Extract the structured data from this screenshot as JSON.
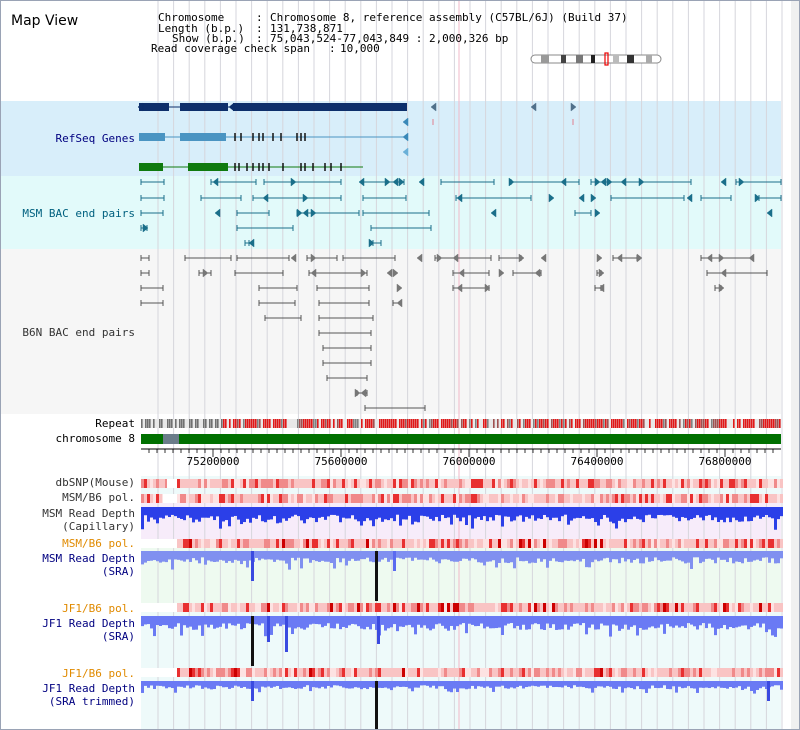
{
  "app": {
    "title": "Map View"
  },
  "info": {
    "chromosome_label": "Chromosome",
    "chromosome_value": "Chromosome 8, reference assembly (C57BL/6J) (Build 37)",
    "length_label": "Length (b.p.)",
    "length_value": "131,738,871",
    "show_label": "Show (b.p.)",
    "show_value": "75,043,524-77,043,849 : 2,000,326 bp",
    "coverage_label": "Read coverage check span",
    "coverage_value": "10,000"
  },
  "tracks": {
    "refseq": "RefSeq Genes",
    "msm_bac": "MSM BAC end pairs",
    "b6n_bac": "B6N BAC end pairs",
    "repeat": "Repeat",
    "chromosome": "chromosome 8",
    "dbsnp": "dbSNP(Mouse)",
    "msm_pol": "MSM/B6 pol.",
    "msm_depth_cap_1": "MSM Read Depth",
    "msm_depth_cap_2": "(Capillary)",
    "msm_pol2": "MSM/B6 pol.",
    "msm_depth_sra_1": "MSM Read Depth",
    "msm_depth_sra_2": "(SRA)",
    "jf1_pol": "JF1/B6 pol.",
    "jf1_depth_sra_1": "JF1 Read Depth",
    "jf1_depth_sra_2": "(SRA)",
    "jf1_pol2": "JF1/B6 pol.",
    "jf1_depth_trim_1": "JF1 Read Depth",
    "jf1_depth_trim_2": "(SRA trimmed)"
  },
  "ruler": {
    "ticks": [
      "75200000",
      "75600000",
      "76000000",
      "76400000",
      "76800000"
    ]
  },
  "colors": {
    "title_blue": "#000080",
    "msm_bac": "#00607f",
    "orange": "#e08a00",
    "refseq_bg": "#d8eefa",
    "msm_bg": "#e2fafa",
    "chromosome_green": "#007000"
  }
}
